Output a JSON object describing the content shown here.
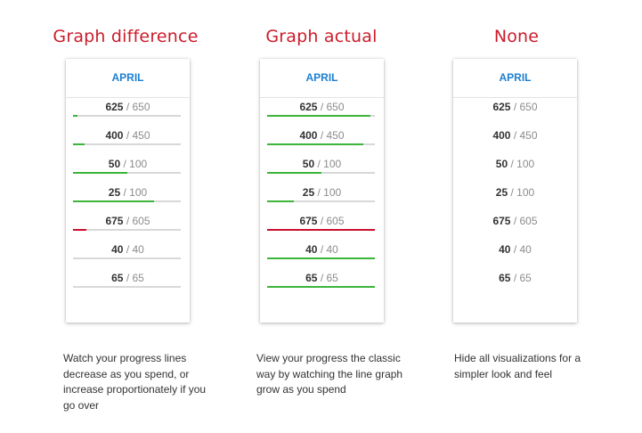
{
  "colors": {
    "title": "#cc1b2b",
    "month": "#1e7fd0",
    "over": "#c8102e",
    "under": "#3cb53a",
    "track": "#d8d8d8"
  },
  "columns": [
    {
      "title": "Graph difference",
      "month": "APRIL",
      "mode": "difference",
      "description": "Watch your progress lines decrease as you spend, or increase proportionately if you go over",
      "rows": [
        {
          "spent": "625",
          "budget": "650",
          "fill": 0.04,
          "over": false
        },
        {
          "spent": "400",
          "budget": "450",
          "fill": 0.11,
          "over": false
        },
        {
          "spent": "50",
          "budget": "100",
          "fill": 0.5,
          "over": false
        },
        {
          "spent": "25",
          "budget": "100",
          "fill": 0.75,
          "over": false
        },
        {
          "spent": "675",
          "budget": "605",
          "fill": 0.12,
          "over": true
        },
        {
          "spent": "40",
          "budget": "40",
          "fill": 0,
          "over": false
        },
        {
          "spent": "65",
          "budget": "65",
          "fill": 0,
          "over": false
        }
      ]
    },
    {
      "title": "Graph actual",
      "month": "APRIL",
      "mode": "actual",
      "description": "View your progress the classic way by watching the line graph grow as you spend",
      "rows": [
        {
          "spent": "625",
          "budget": "650",
          "fill": 0.96,
          "over": false
        },
        {
          "spent": "400",
          "budget": "450",
          "fill": 0.89,
          "over": false
        },
        {
          "spent": "50",
          "budget": "100",
          "fill": 0.5,
          "over": false
        },
        {
          "spent": "25",
          "budget": "100",
          "fill": 0.25,
          "over": false
        },
        {
          "spent": "675",
          "budget": "605",
          "fill": 1,
          "over": true
        },
        {
          "spent": "40",
          "budget": "40",
          "fill": 1,
          "over": false
        },
        {
          "spent": "65",
          "budget": "65",
          "fill": 1,
          "over": false
        }
      ]
    },
    {
      "title": "None",
      "month": "APRIL",
      "mode": "none",
      "description": "Hide all visualizations for a simpler look and feel",
      "rows": [
        {
          "spent": "625",
          "budget": "650"
        },
        {
          "spent": "400",
          "budget": "450"
        },
        {
          "spent": "50",
          "budget": "100"
        },
        {
          "spent": "25",
          "budget": "100"
        },
        {
          "spent": "675",
          "budget": "605"
        },
        {
          "spent": "40",
          "budget": "40"
        },
        {
          "spent": "65",
          "budget": "65"
        }
      ]
    }
  ]
}
